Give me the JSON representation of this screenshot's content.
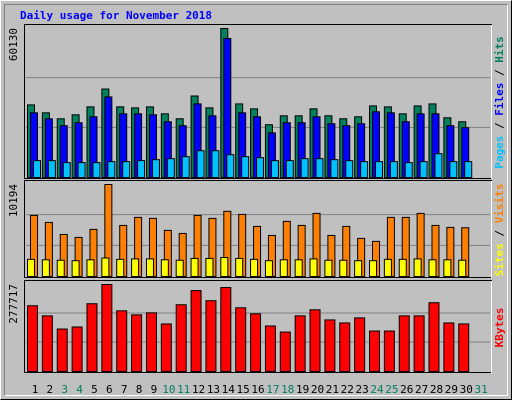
{
  "chart_data": [
    {
      "type": "bar",
      "title": "Daily usage for November 2018",
      "ylim": [
        0,
        60130
      ],
      "yticks": [
        60130
      ],
      "grid_divisions": 3,
      "legend_separator": " / ",
      "series": [
        {
          "name": "Hits",
          "color": "#00805c",
          "values": [
            29300,
            26100,
            23700,
            25300,
            28500,
            35700,
            28500,
            28100,
            28500,
            25700,
            23700,
            32900,
            28100,
            60130,
            29700,
            27700,
            21300,
            24900,
            24900,
            27700,
            24900,
            23700,
            24500,
            28900,
            28500,
            25700,
            28900,
            29700,
            24100,
            22500,
            null
          ]
        },
        {
          "name": "Files",
          "color": "#0000ff",
          "values": [
            26100,
            23700,
            20900,
            22100,
            24500,
            32500,
            25700,
            25700,
            25300,
            22500,
            20900,
            29700,
            24900,
            56100,
            26100,
            24500,
            18000,
            22100,
            22100,
            24500,
            21700,
            20900,
            21700,
            26500,
            26100,
            22500,
            25700,
            25700,
            20900,
            20100,
            null
          ]
        },
        {
          "name": "Pages",
          "color": "#00c0ff",
          "values": [
            6800,
            6800,
            6000,
            6000,
            6000,
            6400,
            6400,
            6800,
            7200,
            7600,
            8400,
            10800,
            10800,
            9200,
            8400,
            8000,
            6800,
            6800,
            7600,
            7600,
            7200,
            6800,
            6400,
            6400,
            6400,
            6000,
            6400,
            9600,
            6400,
            6400,
            null
          ]
        }
      ]
    },
    {
      "type": "bar",
      "ylim": [
        0,
        10194
      ],
      "yticks": [
        10194
      ],
      "grid_divisions": 3,
      "legend_separator": " / ",
      "series": [
        {
          "name": "Visits",
          "color": "#ff8000",
          "values": [
            6770,
            5990,
            4660,
            4330,
            5220,
            10194,
            5660,
            6550,
            6440,
            5110,
            4770,
            6770,
            6440,
            7220,
            6880,
            5550,
            4550,
            6110,
            5660,
            6990,
            4550,
            5550,
            4220,
            3890,
            6550,
            6550,
            6990,
            5660,
            5440,
            5400,
            null
          ]
        },
        {
          "name": "Sites",
          "color": "#ffff00",
          "values": [
            1900,
            1850,
            1800,
            1750,
            1850,
            2050,
            1900,
            1950,
            1950,
            1850,
            1800,
            2000,
            2000,
            2100,
            2000,
            1900,
            1750,
            1850,
            1850,
            1950,
            1800,
            1800,
            1750,
            1750,
            1900,
            1900,
            1950,
            1850,
            1850,
            1800,
            null
          ]
        }
      ]
    },
    {
      "type": "bar",
      "ylim": [
        0,
        277717
      ],
      "yticks": [
        277717
      ],
      "grid_divisions": 3,
      "categories": [
        "1",
        "2",
        "3",
        "4",
        "5",
        "6",
        "7",
        "8",
        "9",
        "10",
        "11",
        "12",
        "13",
        "14",
        "15",
        "16",
        "17",
        "18",
        "19",
        "20",
        "21",
        "22",
        "23",
        "24",
        "25",
        "26",
        "27",
        "28",
        "29",
        "30",
        "31"
      ],
      "category_colors": [
        "#000000",
        "#000000",
        "#00805c",
        "#00805c",
        "#000000",
        "#000000",
        "#000000",
        "#000000",
        "#000000",
        "#00805c",
        "#00805c",
        "#000000",
        "#000000",
        "#000000",
        "#000000",
        "#000000",
        "#00805c",
        "#00805c",
        "#000000",
        "#000000",
        "#000000",
        "#000000",
        "#000000",
        "#00805c",
        "#00805c",
        "#000000",
        "#000000",
        "#000000",
        "#000000",
        "#000000",
        "#00805c"
      ],
      "series": [
        {
          "name": "KBytes",
          "color": "#ff0000",
          "values": [
            209900,
            177600,
            135600,
            142100,
            216300,
            277717,
            193700,
            180800,
            187300,
            151800,
            213100,
            258300,
            226000,
            268000,
            203400,
            184000,
            145300,
            125900,
            177600,
            197000,
            164700,
            155000,
            171100,
            129200,
            129200,
            177600,
            177600,
            219600,
            155000,
            151800,
            null
          ]
        }
      ]
    }
  ]
}
